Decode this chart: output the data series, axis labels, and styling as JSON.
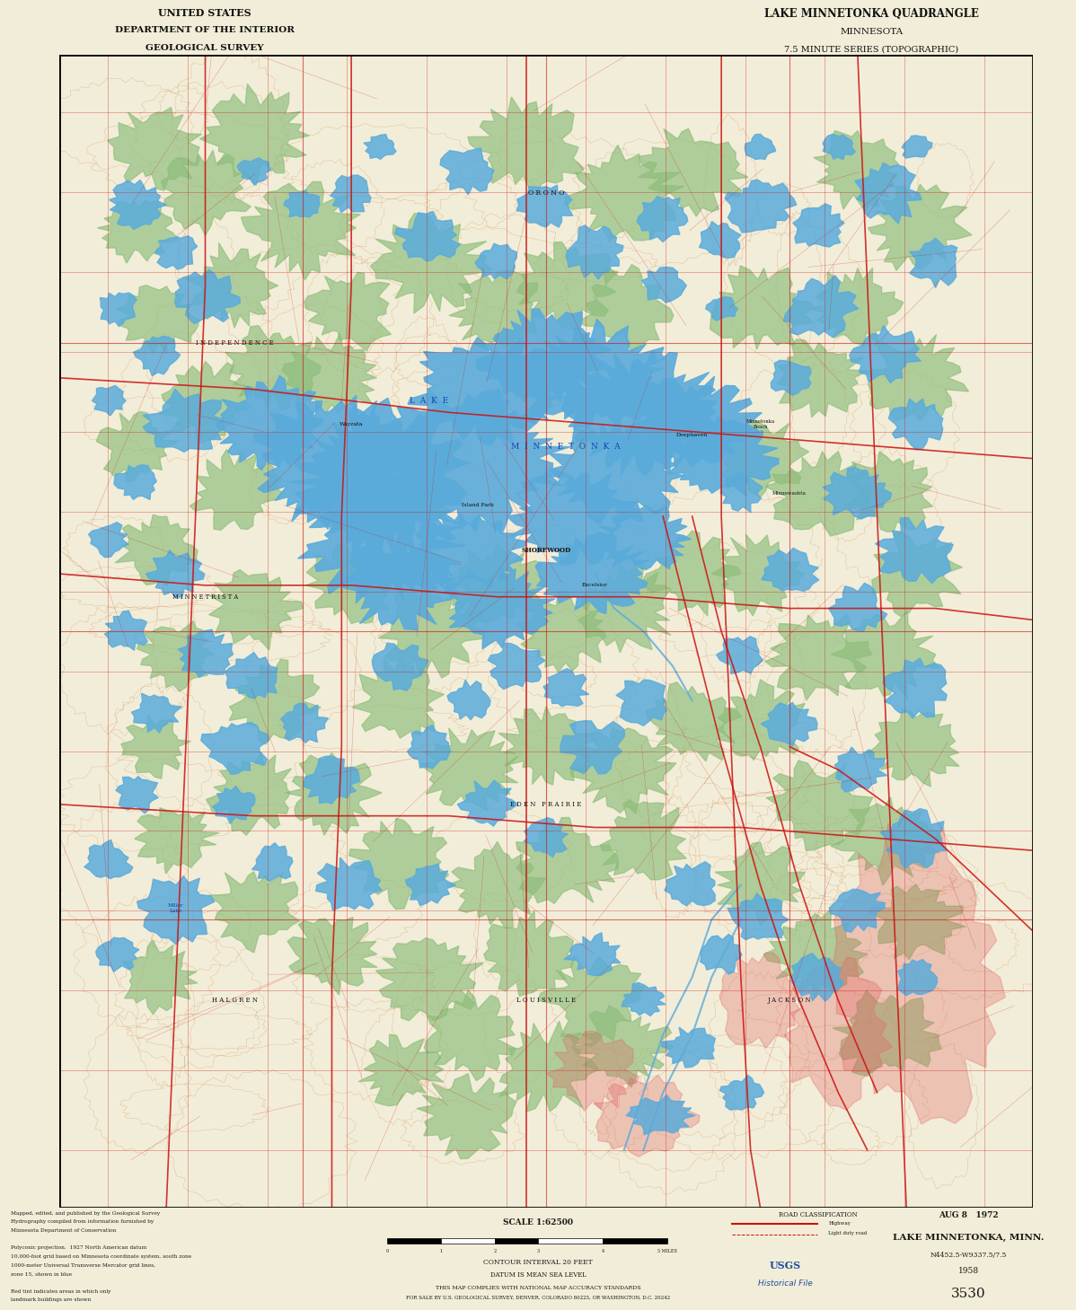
{
  "title_left_line1": "UNITED STATES",
  "title_left_line2": "DEPARTMENT OF THE INTERIOR",
  "title_left_line3": "GEOLOGICAL SURVEY",
  "title_right_line1": "LAKE MINNETONKA QUADRANGLE",
  "title_right_line2": "MINNESOTA",
  "title_right_line3": "7.5 MINUTE SERIES (TOPOGRAPHIC)",
  "footer_title": "LAKE MINNETONKA, MINN.",
  "footer_subtitle": "N4452.5-W9337.5/7.5",
  "footer_year": "1958",
  "footer_date_printed": "AUG 8   1972",
  "footer_catalog": "3530",
  "footer_usgs": "USGS",
  "footer_historical": "Historical File",
  "contour_interval": "CONTOUR INTERVAL 20 FEET",
  "datum": "DATUM IS MEAN SEA LEVEL",
  "scale_label": "SCALE 1:62500",
  "sale_text": "FOR SALE BY U.S. GEOLOGICAL SURVEY, DENVER, COLORADO 80225, OR WASHINGTON, D.C. 20242",
  "accuracy_text": "THIS MAP COMPLIES WITH NATIONAL MAP ACCURACY STANDARDS",
  "background_color": "#f2edd8",
  "map_bg": "#f2edd8",
  "water_color": "#5aabdb",
  "forest_color": "#8cbd7a",
  "urban_color": "#e06060",
  "road_major_color": "#cc1111",
  "road_minor_color": "#cc1111",
  "contour_color": "#c87a3a",
  "grid_color": "#cc1111",
  "text_color": "#1a1a1a",
  "header_text_color": "#111111",
  "blue_text": "#1e4fa0",
  "red_text": "#cc1111",
  "fig_width": 11.98,
  "fig_height": 14.59,
  "notes": [
    "Mapped, edited, and published by the Geological Survey",
    "Hydrography compiled from information furnished by",
    "Minnesota Department of Conservation",
    "",
    "Polyconic projection.  1927 North American datum",
    "10,000-foot grid based on Minnesota coordinate system, south zone",
    "1000-meter Universal Transverse Mercator grid lines,",
    "zone 15, shown in blue",
    "",
    "Red tint indicates areas in which only",
    "landmark buildings are shown"
  ]
}
